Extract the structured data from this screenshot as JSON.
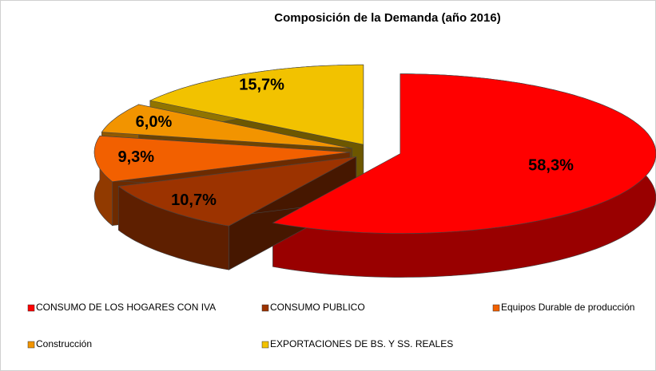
{
  "chart_data": {
    "type": "pie",
    "title": "Composición de la Demanda (año 2016)",
    "categories": [
      "CONSUMO DE LOS HOGARES CON IVA",
      "CONSUMO PUBLICO",
      "Equipos Durable de producción",
      "Construcción",
      "EXPORTACIONES DE BS. Y SS. REALES"
    ],
    "values": [
      58.3,
      10.7,
      9.3,
      6.0,
      15.7
    ],
    "value_labels": [
      "58,3%",
      "10,7%",
      "9,3%",
      "6,0%",
      "15,7%"
    ],
    "colors": [
      "#ff0000",
      "#9c3300",
      "#f26000",
      "#f29400",
      "#f2c200"
    ],
    "legend": "bottom"
  }
}
